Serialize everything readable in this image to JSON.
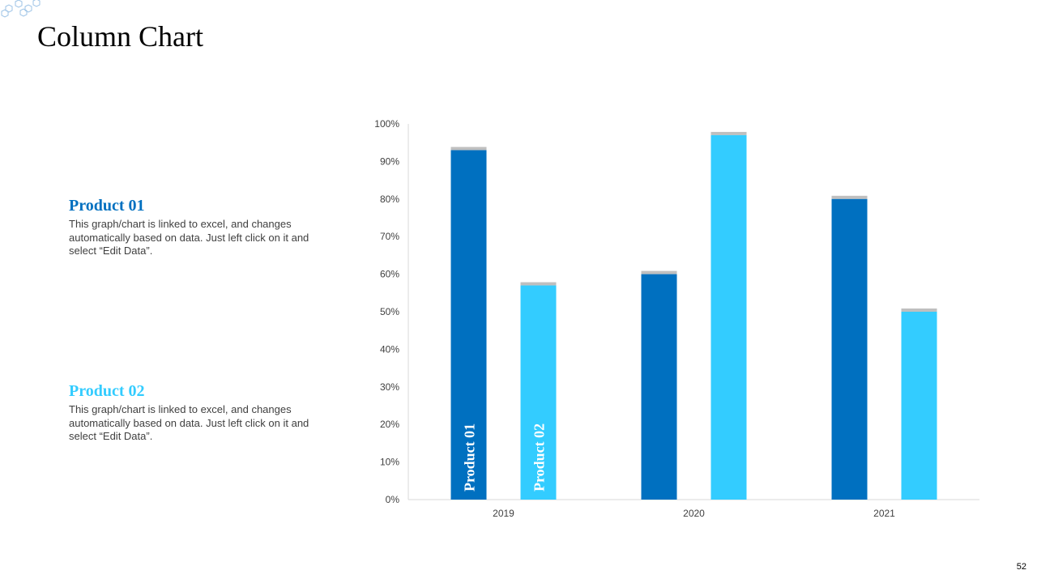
{
  "slide": {
    "title": "Column Chart",
    "page_number": "52"
  },
  "legend": [
    {
      "title": "Product 01",
      "color": "#0070C0",
      "description": "This graph/chart is linked to excel, and changes automatically based on data. Just left click on it and select “Edit Data”."
    },
    {
      "title": "Product 02",
      "color": "#33CCFF",
      "description": "This graph/chart is linked to excel, and changes automatically based on data. Just left click on it and select “Edit Data”."
    }
  ],
  "chart_data": {
    "type": "bar",
    "categories": [
      "2019",
      "2020",
      "2021"
    ],
    "series": [
      {
        "name": "Product 01",
        "values": [
          93,
          60,
          80
        ],
        "color": "#0070C0"
      },
      {
        "name": "Product 02",
        "values": [
          57,
          97,
          50
        ],
        "color": "#33CCFF"
      }
    ],
    "y_ticks": [
      "0%",
      "10%",
      "20%",
      "30%",
      "40%",
      "50%",
      "60%",
      "70%",
      "80%",
      "90%",
      "100%"
    ],
    "ylim": [
      0,
      100
    ],
    "y_unit": "%",
    "grid": false,
    "legend": "in-bar labels on first category"
  }
}
